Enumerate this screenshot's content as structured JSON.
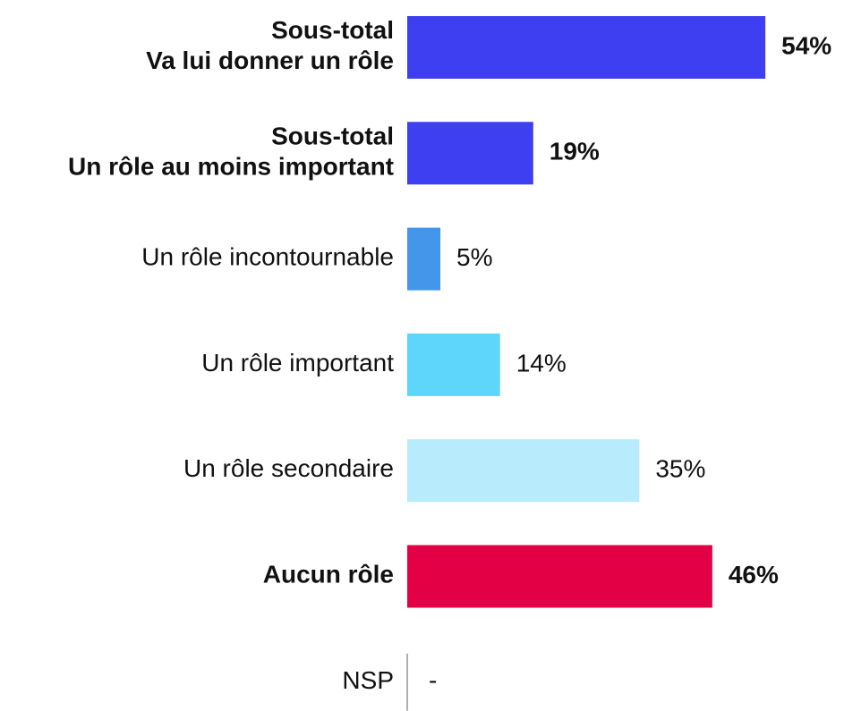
{
  "chart_data": {
    "type": "hbar",
    "categories": [
      "Sous-total\nVa lui donner un rôle",
      "Sous-total\nUn rôle au moins important",
      "Un rôle incontournable",
      "Un rôle important",
      "Un rôle secondaire",
      "Aucun rôle",
      "NSP"
    ],
    "values": [
      54,
      19,
      5,
      14,
      35,
      46,
      null
    ],
    "value_labels": [
      "54%",
      "19%",
      "5%",
      "14%",
      "35%",
      "46%",
      "-"
    ],
    "colors": [
      "#3d3ff0",
      "#3d3ff0",
      "#4496ea",
      "#5ed5fb",
      "#b8ebfb",
      "#e30045",
      "#b0b0b0"
    ],
    "bold": [
      true,
      true,
      false,
      false,
      false,
      true,
      false
    ]
  }
}
